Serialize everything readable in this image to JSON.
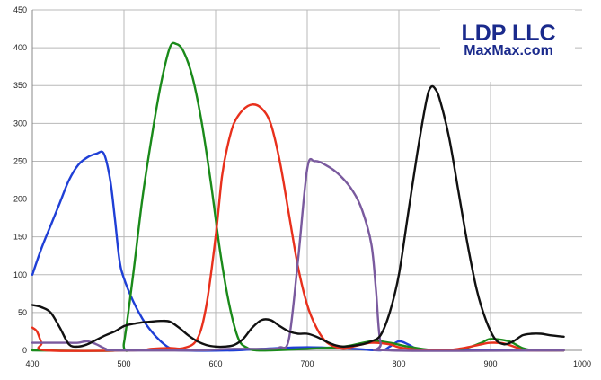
{
  "logo": {
    "line1": "LDP LLC",
    "line2": "MaxMax.com",
    "color": "#1a2a8c"
  },
  "chart_data": {
    "type": "line",
    "title": "",
    "xlabel": "",
    "ylabel": "",
    "xlim": [
      400,
      1000
    ],
    "ylim": [
      0,
      450
    ],
    "xticks": [
      400,
      500,
      600,
      700,
      800,
      900,
      1000
    ],
    "yticks": [
      0,
      50,
      100,
      150,
      200,
      250,
      300,
      350,
      400,
      450
    ],
    "grid": true,
    "legend": "none",
    "series": [
      {
        "color": "#1f3fd6",
        "points": [
          [
            400,
            100
          ],
          [
            410,
            135
          ],
          [
            420,
            165
          ],
          [
            430,
            195
          ],
          [
            440,
            225
          ],
          [
            450,
            245
          ],
          [
            460,
            255
          ],
          [
            470,
            260
          ],
          [
            478,
            260
          ],
          [
            485,
            225
          ],
          [
            490,
            175
          ],
          [
            495,
            120
          ],
          [
            500,
            95
          ],
          [
            510,
            65
          ],
          [
            520,
            42
          ],
          [
            530,
            25
          ],
          [
            540,
            12
          ],
          [
            550,
            3
          ],
          [
            560,
            0
          ],
          [
            620,
            0
          ],
          [
            650,
            2
          ],
          [
            700,
            4
          ],
          [
            750,
            2
          ],
          [
            780,
            0
          ],
          [
            790,
            5
          ],
          [
            800,
            12
          ],
          [
            810,
            8
          ],
          [
            820,
            2
          ],
          [
            840,
            0
          ],
          [
            980,
            0
          ]
        ]
      },
      {
        "color": "#1a8a1a",
        "points": [
          [
            400,
            0
          ],
          [
            495,
            0
          ],
          [
            500,
            10
          ],
          [
            510,
            100
          ],
          [
            520,
            200
          ],
          [
            530,
            280
          ],
          [
            540,
            350
          ],
          [
            550,
            400
          ],
          [
            557,
            405
          ],
          [
            565,
            395
          ],
          [
            575,
            360
          ],
          [
            585,
            300
          ],
          [
            595,
            220
          ],
          [
            605,
            130
          ],
          [
            615,
            60
          ],
          [
            625,
            15
          ],
          [
            635,
            3
          ],
          [
            645,
            0
          ],
          [
            660,
            0
          ],
          [
            700,
            2
          ],
          [
            740,
            5
          ],
          [
            770,
            12
          ],
          [
            790,
            10
          ],
          [
            810,
            5
          ],
          [
            840,
            0
          ],
          [
            870,
            2
          ],
          [
            890,
            10
          ],
          [
            900,
            15
          ],
          [
            920,
            12
          ],
          [
            935,
            3
          ],
          [
            950,
            0
          ],
          [
            980,
            0
          ]
        ]
      },
      {
        "color": "#e8301c",
        "points": [
          [
            400,
            30
          ],
          [
            405,
            25
          ],
          [
            410,
            10
          ],
          [
            415,
            0
          ],
          [
            510,
            0
          ],
          [
            530,
            2
          ],
          [
            550,
            3
          ],
          [
            565,
            3
          ],
          [
            580,
            15
          ],
          [
            590,
            60
          ],
          [
            600,
            150
          ],
          [
            607,
            230
          ],
          [
            613,
            270
          ],
          [
            620,
            300
          ],
          [
            630,
            318
          ],
          [
            640,
            325
          ],
          [
            650,
            320
          ],
          [
            660,
            300
          ],
          [
            670,
            250
          ],
          [
            680,
            180
          ],
          [
            690,
            110
          ],
          [
            700,
            60
          ],
          [
            710,
            30
          ],
          [
            720,
            12
          ],
          [
            730,
            5
          ],
          [
            740,
            2
          ],
          [
            750,
            5
          ],
          [
            770,
            10
          ],
          [
            790,
            8
          ],
          [
            800,
            4
          ],
          [
            820,
            1
          ],
          [
            850,
            0
          ],
          [
            870,
            3
          ],
          [
            890,
            8
          ],
          [
            900,
            10
          ],
          [
            915,
            9
          ],
          [
            930,
            3
          ],
          [
            940,
            0
          ],
          [
            980,
            0
          ]
        ]
      },
      {
        "color": "#7a5a9e",
        "points": [
          [
            400,
            10
          ],
          [
            410,
            10
          ],
          [
            420,
            10
          ],
          [
            430,
            10
          ],
          [
            440,
            10
          ],
          [
            450,
            10
          ],
          [
            460,
            12
          ],
          [
            470,
            8
          ],
          [
            480,
            2
          ],
          [
            490,
            0
          ],
          [
            580,
            0
          ],
          [
            600,
            1
          ],
          [
            620,
            2
          ],
          [
            660,
            2
          ],
          [
            670,
            4
          ],
          [
            680,
            15
          ],
          [
            690,
            120
          ],
          [
            700,
            240
          ],
          [
            708,
            250
          ],
          [
            720,
            245
          ],
          [
            735,
            232
          ],
          [
            750,
            210
          ],
          [
            760,
            185
          ],
          [
            770,
            140
          ],
          [
            775,
            80
          ],
          [
            780,
            10
          ],
          [
            790,
            0
          ],
          [
            980,
            0
          ]
        ]
      },
      {
        "color": "#111111",
        "points": [
          [
            400,
            60
          ],
          [
            410,
            57
          ],
          [
            420,
            50
          ],
          [
            430,
            30
          ],
          [
            440,
            8
          ],
          [
            450,
            5
          ],
          [
            460,
            8
          ],
          [
            470,
            14
          ],
          [
            480,
            20
          ],
          [
            490,
            25
          ],
          [
            500,
            32
          ],
          [
            510,
            35
          ],
          [
            520,
            37
          ],
          [
            530,
            38
          ],
          [
            540,
            39
          ],
          [
            550,
            38
          ],
          [
            560,
            30
          ],
          [
            570,
            20
          ],
          [
            580,
            12
          ],
          [
            590,
            7
          ],
          [
            600,
            5
          ],
          [
            610,
            5
          ],
          [
            620,
            7
          ],
          [
            630,
            15
          ],
          [
            640,
            30
          ],
          [
            650,
            40
          ],
          [
            660,
            40
          ],
          [
            670,
            32
          ],
          [
            680,
            25
          ],
          [
            690,
            22
          ],
          [
            700,
            22
          ],
          [
            710,
            18
          ],
          [
            720,
            12
          ],
          [
            730,
            7
          ],
          [
            740,
            5
          ],
          [
            760,
            8
          ],
          [
            770,
            12
          ],
          [
            780,
            20
          ],
          [
            790,
            50
          ],
          [
            800,
            100
          ],
          [
            810,
            180
          ],
          [
            820,
            260
          ],
          [
            830,
            330
          ],
          [
            835,
            348
          ],
          [
            840,
            345
          ],
          [
            845,
            330
          ],
          [
            855,
            280
          ],
          [
            865,
            210
          ],
          [
            875,
            140
          ],
          [
            885,
            80
          ],
          [
            895,
            40
          ],
          [
            905,
            15
          ],
          [
            915,
            8
          ],
          [
            925,
            12
          ],
          [
            935,
            20
          ],
          [
            945,
            22
          ],
          [
            955,
            22
          ],
          [
            965,
            20
          ],
          [
            980,
            18
          ]
        ]
      }
    ]
  }
}
